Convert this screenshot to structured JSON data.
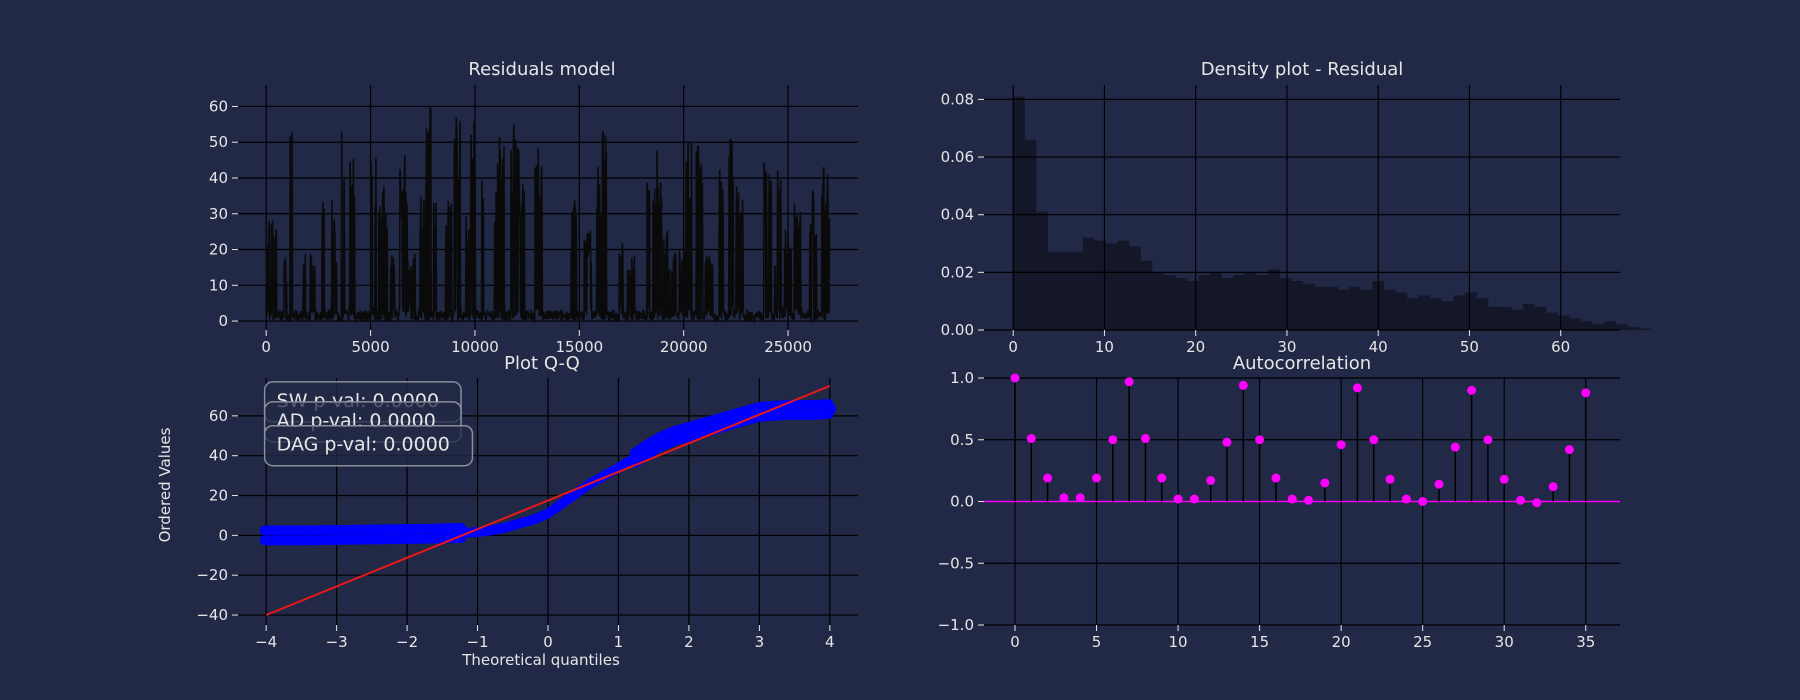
{
  "figure": {
    "background": "#212946",
    "text_color": "#e6e6e6",
    "grid_color": "#000000"
  },
  "chart_data": [
    {
      "id": "residuals",
      "type": "line",
      "title": "Residuals model",
      "xlabel": "",
      "ylabel": "",
      "xlim": [
        -1350,
        28350
      ],
      "ylim": [
        -2.5,
        66
      ],
      "xticks": [
        0,
        5000,
        10000,
        15000,
        20000,
        25000
      ],
      "yticks": [
        0,
        10,
        20,
        30,
        40,
        50,
        60
      ],
      "grid": true,
      "series": [
        {
          "color": "#0a0a0a",
          "n_points": 27000,
          "y_range": [
            0,
            63
          ]
        }
      ]
    },
    {
      "id": "density",
      "type": "bar",
      "title": "Density plot - Residual",
      "xlabel": "",
      "ylabel": "",
      "xlim": [
        -3.2,
        66.5
      ],
      "ylim": [
        0,
        0.085
      ],
      "xticks": [
        0,
        10,
        20,
        30,
        40,
        50,
        60
      ],
      "yticks": [
        0.0,
        0.02,
        0.04,
        0.06,
        0.08
      ],
      "ytick_decimals": 2,
      "grid": true,
      "bin_edges_start": 0,
      "bin_width": 1.27,
      "bar_color": "#131727",
      "values": [
        0.081,
        0.066,
        0.041,
        0.027,
        0.027,
        0.027,
        0.032,
        0.031,
        0.03,
        0.031,
        0.029,
        0.024,
        0.02,
        0.019,
        0.018,
        0.017,
        0.019,
        0.02,
        0.018,
        0.019,
        0.02,
        0.019,
        0.021,
        0.018,
        0.017,
        0.016,
        0.015,
        0.015,
        0.014,
        0.015,
        0.014,
        0.017,
        0.014,
        0.013,
        0.011,
        0.012,
        0.011,
        0.01,
        0.012,
        0.013,
        0.011,
        0.008,
        0.008,
        0.007,
        0.009,
        0.008,
        0.006,
        0.005,
        0.004,
        0.003,
        0.002,
        0.003,
        0.002,
        0.001,
        0.0005
      ]
    },
    {
      "id": "qq",
      "type": "scatter",
      "title": "Plot Q-Q",
      "xlabel": "Theoretical quantiles",
      "ylabel": "Ordered Values",
      "xlim": [
        -4.4,
        4.4
      ],
      "ylim": [
        -45,
        79
      ],
      "xticks": [
        -4,
        -3,
        -2,
        -1,
        0,
        1,
        2,
        3,
        4
      ],
      "yticks": [
        -40,
        -20,
        0,
        20,
        40,
        60
      ],
      "grid": true,
      "series": [
        {
          "type": "scatter",
          "color": "#0000ff",
          "points": [
            [
              -4.02,
              0
            ],
            [
              -3.8,
              0
            ],
            [
              -3.6,
              0
            ],
            [
              -3.4,
              0
            ],
            [
              -3.2,
              0.1
            ],
            [
              -3.0,
              0.2
            ],
            [
              -2.8,
              0.3
            ],
            [
              -2.6,
              0.4
            ],
            [
              -2.4,
              0.5
            ],
            [
              -2.2,
              0.6
            ],
            [
              -2.0,
              0.7
            ],
            [
              -1.8,
              0.8
            ],
            [
              -1.6,
              0.9
            ],
            [
              -1.4,
              1.1
            ],
            [
              -1.2,
              1.3
            ],
            [
              -1.0,
              1.6
            ],
            [
              -0.8,
              2.5
            ],
            [
              -0.6,
              4
            ],
            [
              -0.4,
              6
            ],
            [
              -0.2,
              8
            ],
            [
              0,
              11
            ],
            [
              0.2,
              16
            ],
            [
              0.4,
              21
            ],
            [
              0.6,
              26
            ],
            [
              0.8,
              30
            ],
            [
              1.0,
              34
            ],
            [
              1.2,
              38
            ],
            [
              1.4,
              43
            ],
            [
              1.6,
              47
            ],
            [
              1.8,
              50
            ],
            [
              2.0,
              52
            ],
            [
              2.2,
              54
            ],
            [
              2.4,
              56
            ],
            [
              2.6,
              58
            ],
            [
              2.8,
              60
            ],
            [
              3.0,
              62
            ],
            [
              3.2,
              62.5
            ],
            [
              3.4,
              63
            ],
            [
              3.6,
              63
            ],
            [
              3.8,
              63
            ],
            [
              4.02,
              63.5
            ]
          ]
        },
        {
          "type": "line",
          "color": "#e8171a",
          "points": [
            [
              -4,
              -40
            ],
            [
              4,
              75
            ]
          ]
        }
      ],
      "annotations": [
        {
          "text": "SW p-val: 0.0000",
          "x": -4.05,
          "y": 68
        },
        {
          "text": "AD p-val: 0.0000",
          "x": -4.05,
          "y": 58
        },
        {
          "text": "DAG p-val: 0.0000",
          "x": -4.05,
          "y": 46
        }
      ]
    },
    {
      "id": "acf",
      "type": "stem",
      "title": "Autocorrelation",
      "xlabel": "",
      "ylabel": "",
      "xlim": [
        -1.9,
        37.1
      ],
      "ylim": [
        -1.0,
        1.0
      ],
      "xticks": [
        0,
        5,
        10,
        15,
        20,
        25,
        30,
        35
      ],
      "yticks": [
        -1.0,
        -0.5,
        0.0,
        0.5,
        1.0
      ],
      "ytick_decimals": 1,
      "grid": true,
      "marker_color": "#ff00ff",
      "baseline_color": "#ff00ff",
      "values": [
        1.0,
        0.51,
        0.19,
        0.03,
        0.03,
        0.19,
        0.5,
        0.97,
        0.51,
        0.19,
        0.02,
        0.02,
        0.17,
        0.48,
        0.94,
        0.5,
        0.19,
        0.02,
        0.01,
        0.15,
        0.46,
        0.92,
        0.5,
        0.18,
        0.02,
        0.0,
        0.14,
        0.44,
        0.9,
        0.5,
        0.18,
        0.01,
        -0.01,
        0.12,
        0.42,
        0.88
      ]
    }
  ]
}
